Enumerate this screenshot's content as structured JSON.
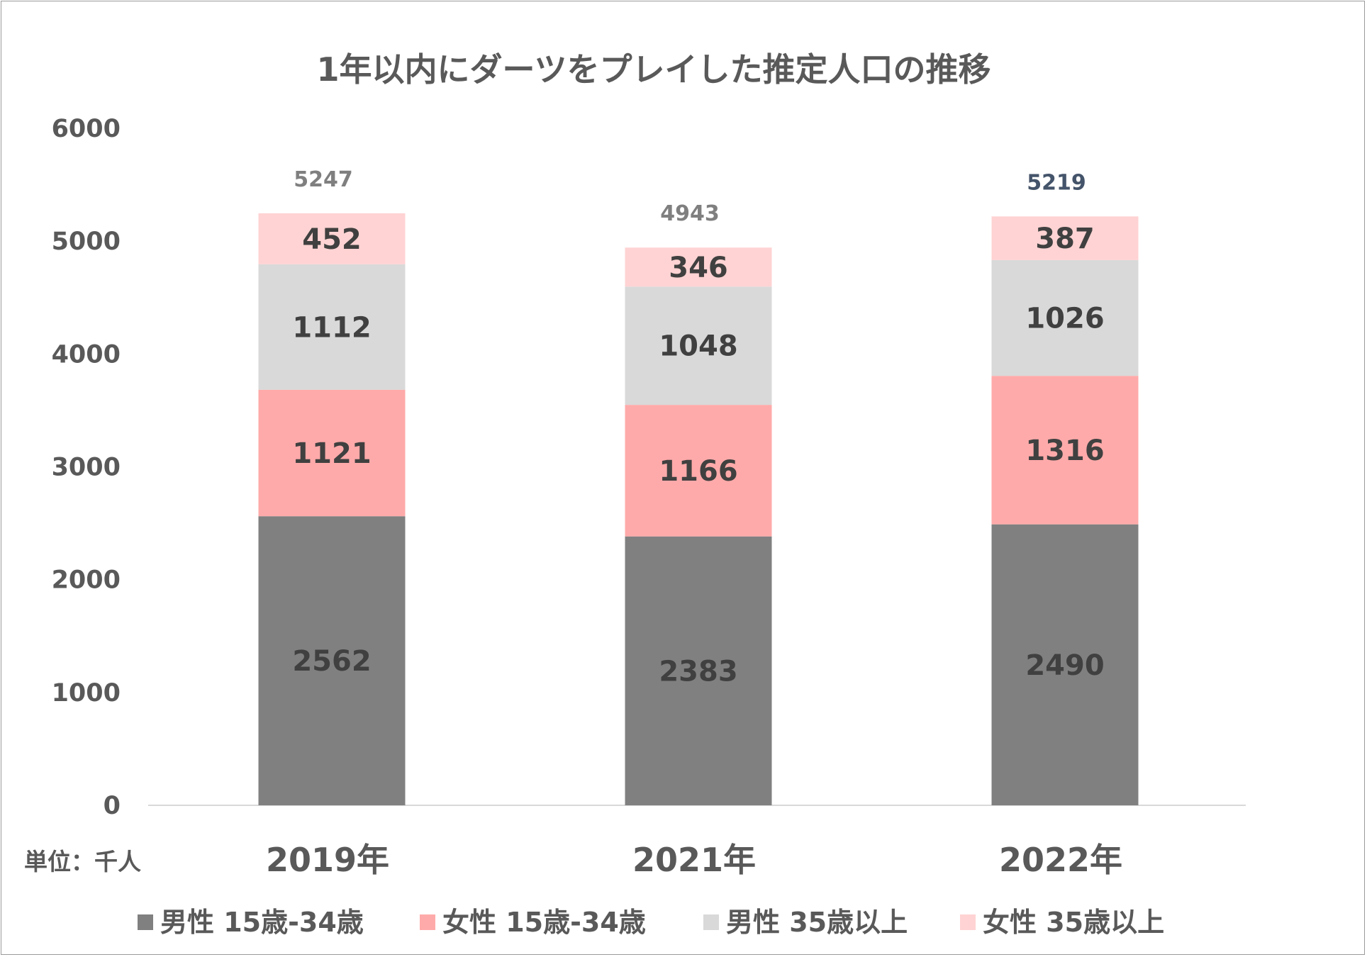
{
  "chart_data": {
    "type": "bar",
    "stacked": true,
    "title": "1年以内にダーツをプレイした推定人口の推移",
    "unit_label": "単位：千人",
    "categories": [
      "2019年",
      "2021年",
      "2022年"
    ],
    "ylim": [
      0,
      6000
    ],
    "yticks": [
      0,
      1000,
      2000,
      3000,
      4000,
      5000,
      6000
    ],
    "grid": false,
    "legend_position": "bottom",
    "series": [
      {
        "name": "男性 15歳-34歳",
        "color": "#808080",
        "values": [
          2562,
          2383,
          2490
        ]
      },
      {
        "name": "女性 15歳-34歳",
        "color": "#FFAAAA",
        "values": [
          1121,
          1166,
          1316
        ]
      },
      {
        "name": "男性 35歳以上",
        "color": "#D9D9D9",
        "values": [
          1112,
          1048,
          1026
        ]
      },
      {
        "name": "女性 35歳以上",
        "color": "#FFD3D3",
        "values": [
          452,
          346,
          387
        ]
      }
    ],
    "totals": [
      5247,
      4943,
      5219
    ],
    "total_colors": [
      "#7F7F7F",
      "#7F7F7F",
      "#44546A"
    ]
  }
}
